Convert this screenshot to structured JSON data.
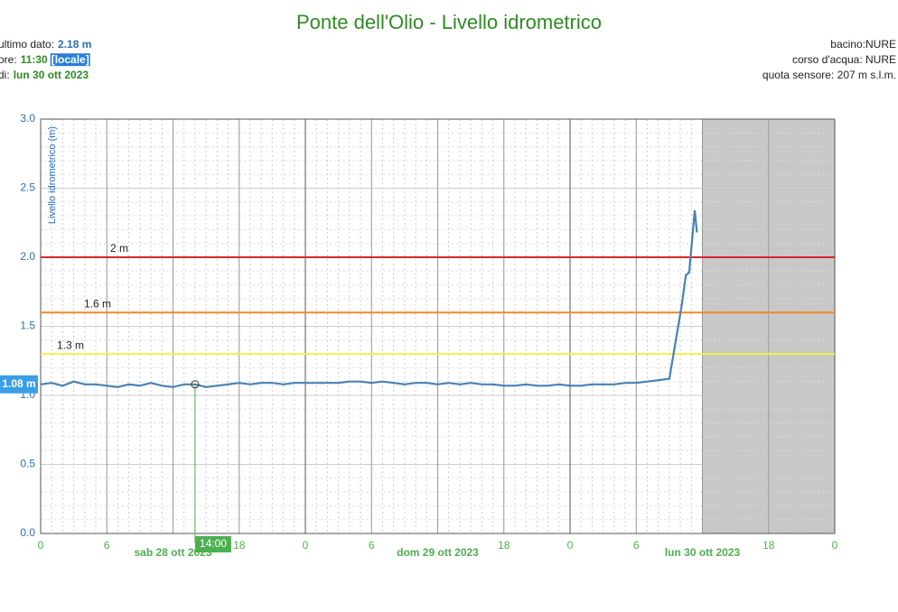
{
  "chart_data": {
    "type": "line",
    "title": "Ponte dell'Olio - Livello idrometrico",
    "info_left": [
      {
        "label": "ultimo dato:",
        "value": "2.18 m"
      },
      {
        "label": "ore:",
        "value": "11:30",
        "tag": "[locale]"
      },
      {
        "label": "di:",
        "value": "lun 30 ott 2023"
      }
    ],
    "info_right": [
      "bacino:NURE",
      "corso d'acqua: NURE",
      "quota sensore: 207 m s.l.m."
    ],
    "y_label": "Livello idrometrico (m)",
    "x": [
      0,
      1,
      2,
      3,
      4,
      5,
      6,
      7,
      8,
      9,
      10,
      11,
      12,
      13,
      14,
      15,
      16,
      17,
      18,
      19,
      20,
      21,
      22,
      23,
      24,
      25,
      26,
      27,
      28,
      29,
      30,
      31,
      32,
      33,
      34,
      35,
      36,
      37,
      38,
      39,
      40,
      41,
      42,
      43,
      44,
      45,
      46,
      47,
      48,
      49,
      50,
      51,
      52,
      53,
      54,
      55,
      56,
      57,
      58.1,
      58.5,
      58.8,
      59.3,
      59.5
    ],
    "series": [
      {
        "name": "Livello idrometrico",
        "color": "#4682b4",
        "values": [
          1.08,
          1.09,
          1.07,
          1.1,
          1.08,
          1.08,
          1.07,
          1.06,
          1.08,
          1.07,
          1.09,
          1.07,
          1.06,
          1.08,
          1.08,
          1.06,
          1.07,
          1.08,
          1.09,
          1.08,
          1.09,
          1.09,
          1.08,
          1.09,
          1.09,
          1.09,
          1.09,
          1.09,
          1.1,
          1.1,
          1.09,
          1.1,
          1.09,
          1.08,
          1.09,
          1.09,
          1.08,
          1.09,
          1.08,
          1.09,
          1.08,
          1.08,
          1.07,
          1.07,
          1.08,
          1.07,
          1.07,
          1.08,
          1.07,
          1.07,
          1.08,
          1.08,
          1.08,
          1.09,
          1.09,
          1.1,
          1.11,
          1.12,
          1.64,
          1.87,
          1.89,
          2.34,
          2.18
        ]
      }
    ],
    "xlim": [
      0,
      72
    ],
    "xticks": [
      {
        "value": 0,
        "label": "0"
      },
      6,
      {
        "value": 12,
        "label": "sab 28 ott 2023"
      },
      18,
      {
        "value": 24,
        "label": "0"
      },
      {
        "value": 30,
        "label": "6"
      },
      {
        "value": 36,
        "label": "dom 29 ott 2023"
      },
      {
        "value": 42,
        "label": "18"
      },
      {
        "value": 48,
        "label": "0"
      },
      {
        "value": 54,
        "label": "6"
      },
      {
        "value": 60,
        "label": "lun 30 ott 2023"
      },
      {
        "value": 66,
        "label": "18"
      },
      {
        "value": 72,
        "label": "0"
      }
    ],
    "ylim": [
      0,
      3
    ],
    "yticks": [
      {
        "value": 0,
        "label": "0.0"
      },
      0.5,
      {
        "value": 1,
        "label": "1.0"
      },
      1.5,
      {
        "value": 2,
        "label": "2.0"
      },
      2.5,
      {
        "value": 3,
        "label": "3.0"
      }
    ],
    "grid": true,
    "thresholds": [
      {
        "value": 2,
        "label": "2 m",
        "color": "#d62728"
      },
      {
        "value": 1.6,
        "label": "1.6 m",
        "color": "#f08a24"
      },
      {
        "value": 1.3,
        "label": "1.3 m",
        "color": "#f2f24a"
      }
    ],
    "shade_from": 60,
    "crosshair": {
      "x": 14,
      "x_label": "14:00",
      "y": 1.08,
      "y_label": "1.08 m"
    }
  }
}
